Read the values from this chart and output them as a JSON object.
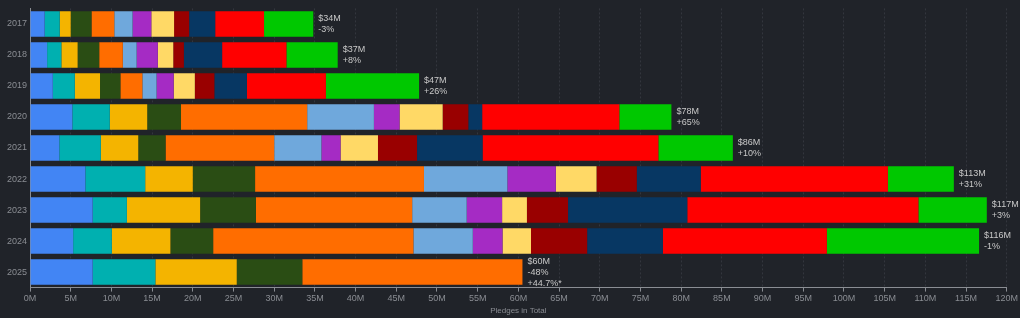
{
  "chart_data": {
    "type": "bar",
    "orientation": "horizontal",
    "stacked": true,
    "xlabel": "Pledges in Total",
    "grid": "x",
    "legend": false,
    "categories": [
      "2017",
      "2018",
      "2019",
      "2020",
      "2021",
      "2022",
      "2023",
      "2024",
      "2025"
    ],
    "xlim": [
      0,
      120
    ],
    "xticks": [
      {
        "value": 0,
        "label": "0M"
      },
      {
        "value": 5,
        "label": "5M"
      },
      {
        "value": 10,
        "label": "10M"
      },
      {
        "value": 15,
        "label": "15M"
      },
      {
        "value": 20,
        "label": "20M"
      },
      {
        "value": 25,
        "label": "25M"
      },
      {
        "value": 30,
        "label": "30M"
      },
      {
        "value": 35,
        "label": "35M"
      },
      {
        "value": 40,
        "label": "40M"
      },
      {
        "value": 45,
        "label": "45M"
      },
      {
        "value": 50,
        "label": "50M"
      },
      {
        "value": 55,
        "label": "55M"
      },
      {
        "value": 60,
        "label": "60M"
      },
      {
        "value": 65,
        "label": "65M"
      },
      {
        "value": 70,
        "label": "70M"
      },
      {
        "value": 75,
        "label": "75M"
      },
      {
        "value": 80,
        "label": "80M"
      },
      {
        "value": 85,
        "label": "85M"
      },
      {
        "value": 90,
        "label": "90M"
      },
      {
        "value": 95,
        "label": "95M"
      },
      {
        "value": 100,
        "label": "100M"
      },
      {
        "value": 105,
        "label": "105M"
      },
      {
        "value": 110,
        "label": "110M"
      },
      {
        "value": 115,
        "label": "115M"
      },
      {
        "value": 120,
        "label": "120M"
      }
    ],
    "series": [
      {
        "color": "#4285f4",
        "values": [
          1.8,
          2.1,
          2.8,
          5.2,
          3.6,
          6.8,
          7.7,
          5.3,
          7.7
        ]
      },
      {
        "color": "#00b0b0",
        "values": [
          1.85,
          1.75,
          2.7,
          4.6,
          5.1,
          7.35,
          4.2,
          4.75,
          7.7
        ]
      },
      {
        "color": "#f4b400",
        "values": [
          1.35,
          2.0,
          3.1,
          4.6,
          4.6,
          5.85,
          9.0,
          7.2,
          10.0
        ]
      },
      {
        "color": "#2a4d14",
        "values": [
          2.55,
          2.65,
          2.5,
          4.15,
          3.35,
          7.65,
          6.85,
          5.25,
          8.05
        ]
      },
      {
        "color": "#ff6d00",
        "values": [
          2.8,
          2.9,
          2.7,
          15.5,
          13.35,
          20.75,
          19.2,
          24.6,
          27.05
        ]
      },
      {
        "color": "#6fa8dc",
        "values": [
          2.25,
          1.7,
          1.75,
          8.2,
          5.8,
          10.25,
          6.7,
          7.3,
          null
        ]
      },
      {
        "color": "#a52bc4",
        "values": [
          2.3,
          2.6,
          2.1,
          3.15,
          2.35,
          5.95,
          4.35,
          3.65,
          null
        ]
      },
      {
        "color": "#ffd966",
        "values": [
          2.8,
          1.9,
          2.6,
          5.3,
          4.6,
          5.0,
          3.05,
          3.5,
          null
        ]
      },
      {
        "color": "#990000",
        "values": [
          1.85,
          1.3,
          2.4,
          3.15,
          4.8,
          4.95,
          5.05,
          6.9,
          null
        ]
      },
      {
        "color": "#073763",
        "values": [
          3.2,
          4.7,
          4.0,
          1.7,
          8.05,
          7.85,
          14.65,
          9.3,
          null
        ]
      },
      {
        "color": "#ff0000",
        "values": [
          6.0,
          7.9,
          9.7,
          16.85,
          21.6,
          23.0,
          28.4,
          20.15,
          null
        ]
      },
      {
        "color": "#00c800",
        "values": [
          6.05,
          6.3,
          11.45,
          6.4,
          9.15,
          8.1,
          8.4,
          18.7,
          null
        ]
      }
    ],
    "totals": [
      "$34M\n-3%",
      "$37M\n+8%",
      "$47M\n+26%",
      "$78M\n+65%",
      "$86M\n+10%",
      "$113M\n+31%",
      "$117M\n+3%",
      "$116M\n-1%",
      "$60M\n-48%\n+44.7%*"
    ]
  }
}
